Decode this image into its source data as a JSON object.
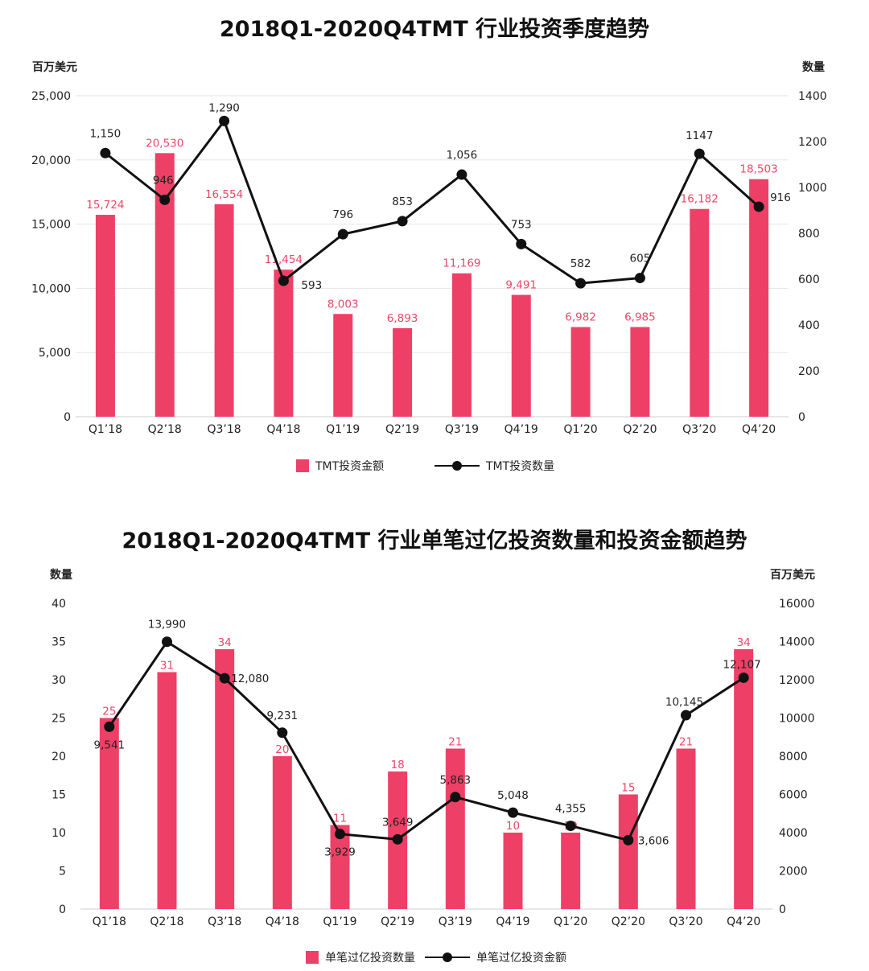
{
  "colors": {
    "bar": "#ee4066",
    "line": "#111111",
    "grid": "#e6e6e6"
  },
  "chart_data": [
    {
      "type": "bar",
      "title": "2018Q1-2020Q4TMT 行业投资季度趋势",
      "categories": [
        "Q1’18",
        "Q2’18",
        "Q3’18",
        "Q4’18",
        "Q1’19",
        "Q2’19",
        "Q3’19",
        "Q4’19",
        "Q1’20",
        "Q2’20",
        "Q3’20",
        "Q4’20"
      ],
      "y_left_label": "百万美元",
      "y_right_label": "数量",
      "y_left_ticks": [
        "0",
        "5,000",
        "10,000",
        "15,000",
        "20,000",
        "25,000"
      ],
      "y_right_ticks": [
        "0",
        "200",
        "400",
        "600",
        "800",
        "1000",
        "1200",
        "1400"
      ],
      "ylim_left": [
        0,
        25000
      ],
      "ylim_right": [
        0,
        1400
      ],
      "series": [
        {
          "name": "TMT投资金额",
          "kind": "bar",
          "axis": "left",
          "values": [
            15724,
            20530,
            16554,
            11454,
            8003,
            6893,
            11169,
            9491,
            6982,
            6985,
            16182,
            18503
          ],
          "labels": [
            "15,724",
            "20,530",
            "16,554",
            "11,454",
            "8,003",
            "6,893",
            "11,169",
            "9,491",
            "6,982",
            "6,985",
            "16,182",
            "18,503"
          ]
        },
        {
          "name": "TMT投资数量",
          "kind": "line",
          "axis": "right",
          "values": [
            1150,
            946,
            1290,
            593,
            796,
            853,
            1056,
            753,
            582,
            605,
            1147,
            916
          ],
          "labels": [
            "1,150",
            "946",
            "1,290",
            "593",
            "796",
            "853",
            "1,056",
            "753",
            "582",
            "605",
            "1147",
            "916"
          ]
        }
      ],
      "grid": true,
      "legend_position": "bottom"
    },
    {
      "type": "bar",
      "title": "2018Q1-2020Q4TMT 行业单笔过亿投资数量和投资金额趋势",
      "categories": [
        "Q1’18",
        "Q2’18",
        "Q3’18",
        "Q4’18",
        "Q1’19",
        "Q2’19",
        "Q3’19",
        "Q4’19",
        "Q1’20",
        "Q2’20",
        "Q3’20",
        "Q4’20"
      ],
      "y_left_label": "数量",
      "y_right_label": "百万美元",
      "y_left_ticks": [
        "0",
        "5",
        "10",
        "15",
        "20",
        "25",
        "30",
        "35",
        "40"
      ],
      "y_right_ticks": [
        "0",
        "2000",
        "4000",
        "6000",
        "8000",
        "10000",
        "12000",
        "14000",
        "16000"
      ],
      "ylim_left": [
        0,
        40
      ],
      "ylim_right": [
        0,
        16000
      ],
      "series": [
        {
          "name": "单笔过亿投资数量",
          "kind": "bar",
          "axis": "left",
          "values": [
            25,
            31,
            34,
            20,
            11,
            18,
            21,
            10,
            10,
            15,
            21,
            34
          ],
          "labels": [
            "25",
            "31",
            "34",
            "20",
            "11",
            "18",
            "21",
            "10",
            "10",
            "15",
            "21",
            "34"
          ]
        },
        {
          "name": "单笔过亿投资金额",
          "kind": "line",
          "axis": "right",
          "values": [
            9541,
            13990,
            12080,
            9231,
            3929,
            3649,
            5863,
            5048,
            4355,
            3606,
            10145,
            12107
          ],
          "labels": [
            "9,541",
            "13,990",
            "12,080",
            "9,231",
            "3,929",
            "3,649",
            "5,863",
            "5,048",
            "4,355",
            "3,606",
            "10,145",
            "12,107"
          ]
        }
      ],
      "grid": false,
      "legend_position": "bottom"
    }
  ]
}
